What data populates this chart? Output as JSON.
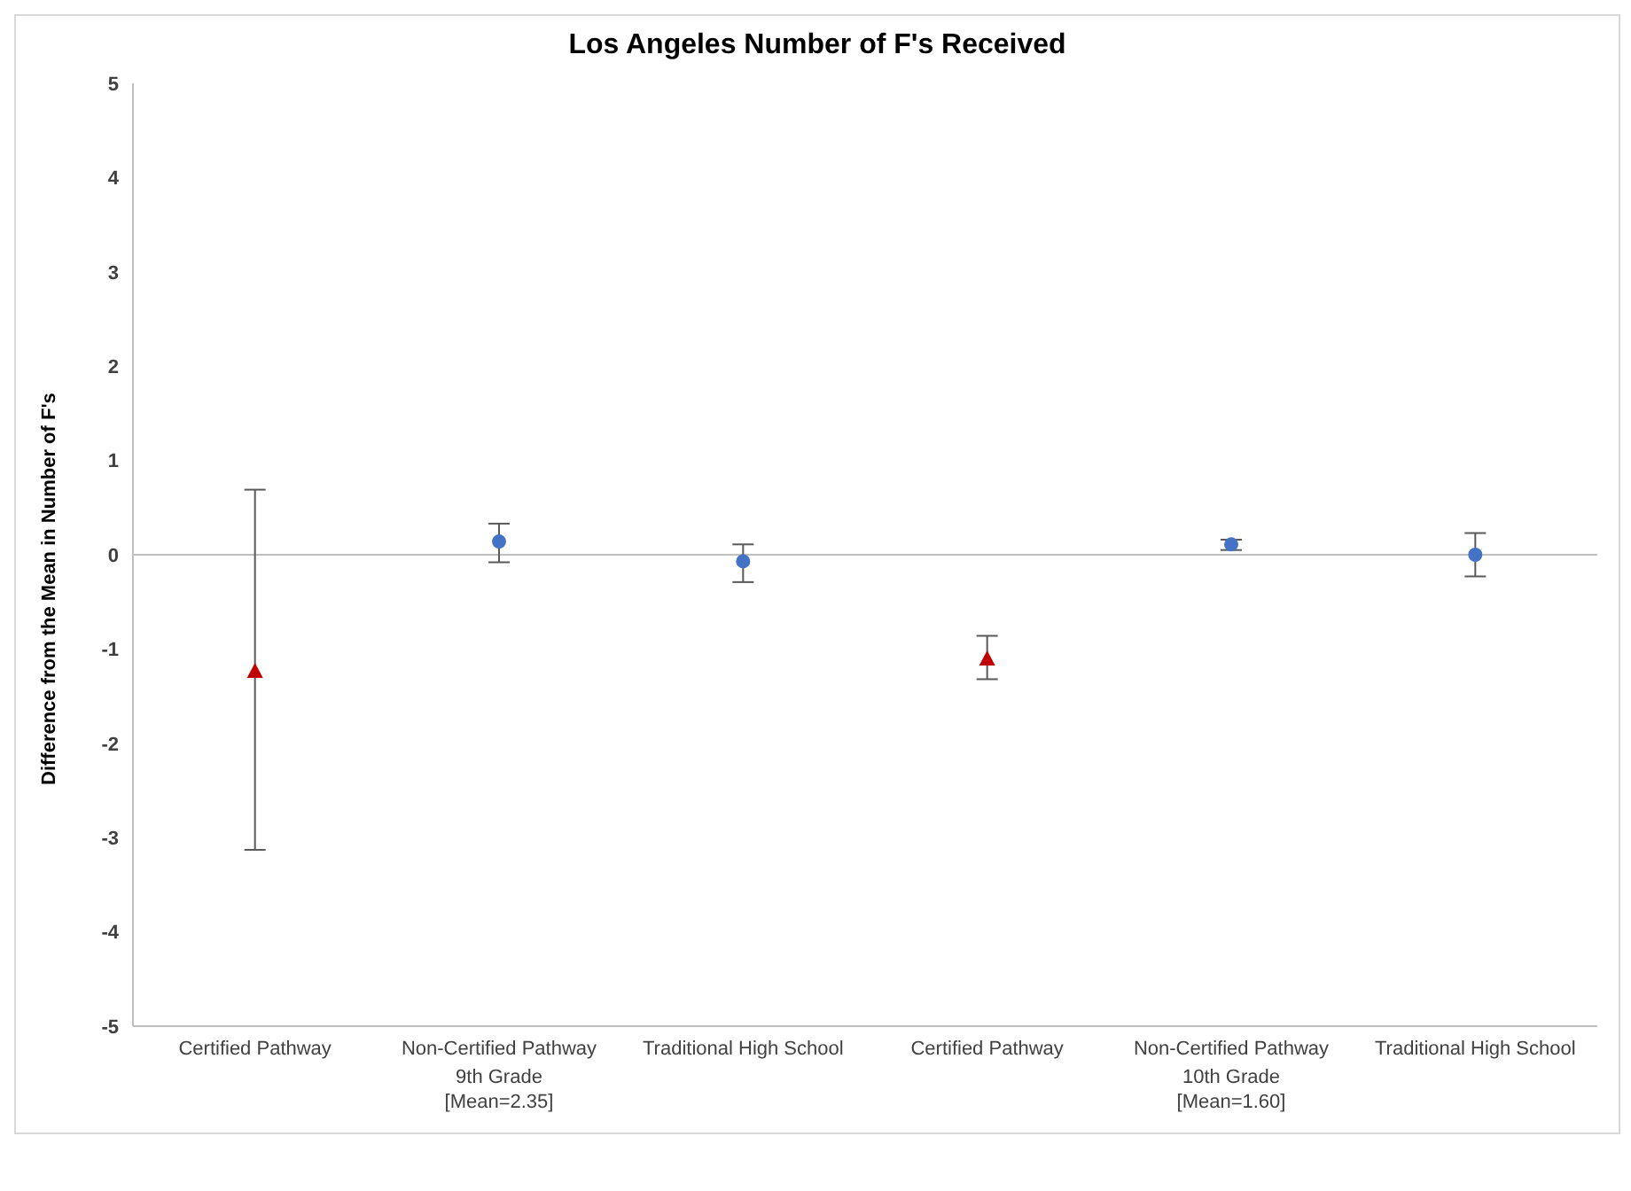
{
  "chart_data": {
    "type": "scatter",
    "title": "Los Angeles Number of F's Received",
    "ylabel": "Difference from the Mean in Number of F's",
    "categories": [
      "Certified Pathway",
      "Non-Certified Pathway",
      "Traditional High School",
      "Certified Pathway",
      "Non-Certified Pathway",
      "Traditional High School"
    ],
    "series": [
      {
        "color": "#c00000",
        "marker": "triangle",
        "values": [
          -1.24,
          null,
          null,
          -1.11,
          null,
          null
        ],
        "errors": [
          [
            -3.13,
            0.69
          ],
          null,
          null,
          [
            -1.32,
            -0.86
          ],
          null,
          null
        ]
      },
      {
        "color": "#4472c4",
        "marker": "circle",
        "values": [
          null,
          0.14,
          -0.07,
          null,
          0.11,
          0.0
        ],
        "errors": [
          null,
          [
            -0.08,
            0.33
          ],
          [
            -0.29,
            0.11
          ],
          null,
          [
            0.05,
            0.16
          ],
          [
            -0.23,
            0.23
          ]
        ]
      }
    ],
    "ylim": [
      -5,
      5
    ],
    "yticks": [
      -5,
      -4,
      -3,
      -2,
      -1,
      0,
      1,
      2,
      3,
      4,
      5
    ],
    "ref_lines": [
      {
        "axis": "y",
        "value": 0,
        "color": "#bfbfbf"
      }
    ],
    "annotations": [
      "9th Grade\n[Mean=2.35]",
      "10th Grade\n[Mean=1.60]"
    ],
    "grid": false,
    "legend": false
  }
}
